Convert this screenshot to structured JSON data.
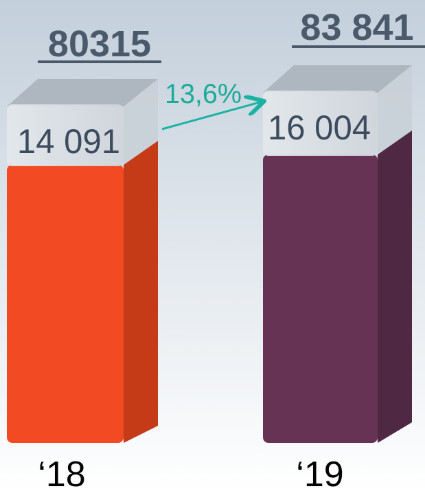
{
  "items": [
    {
      "year": "‘18",
      "total": "80315",
      "top": "14 091"
    },
    {
      "year": "‘19",
      "total": "83 841",
      "top": "16 004"
    }
  ],
  "growth": "13,6%"
}
